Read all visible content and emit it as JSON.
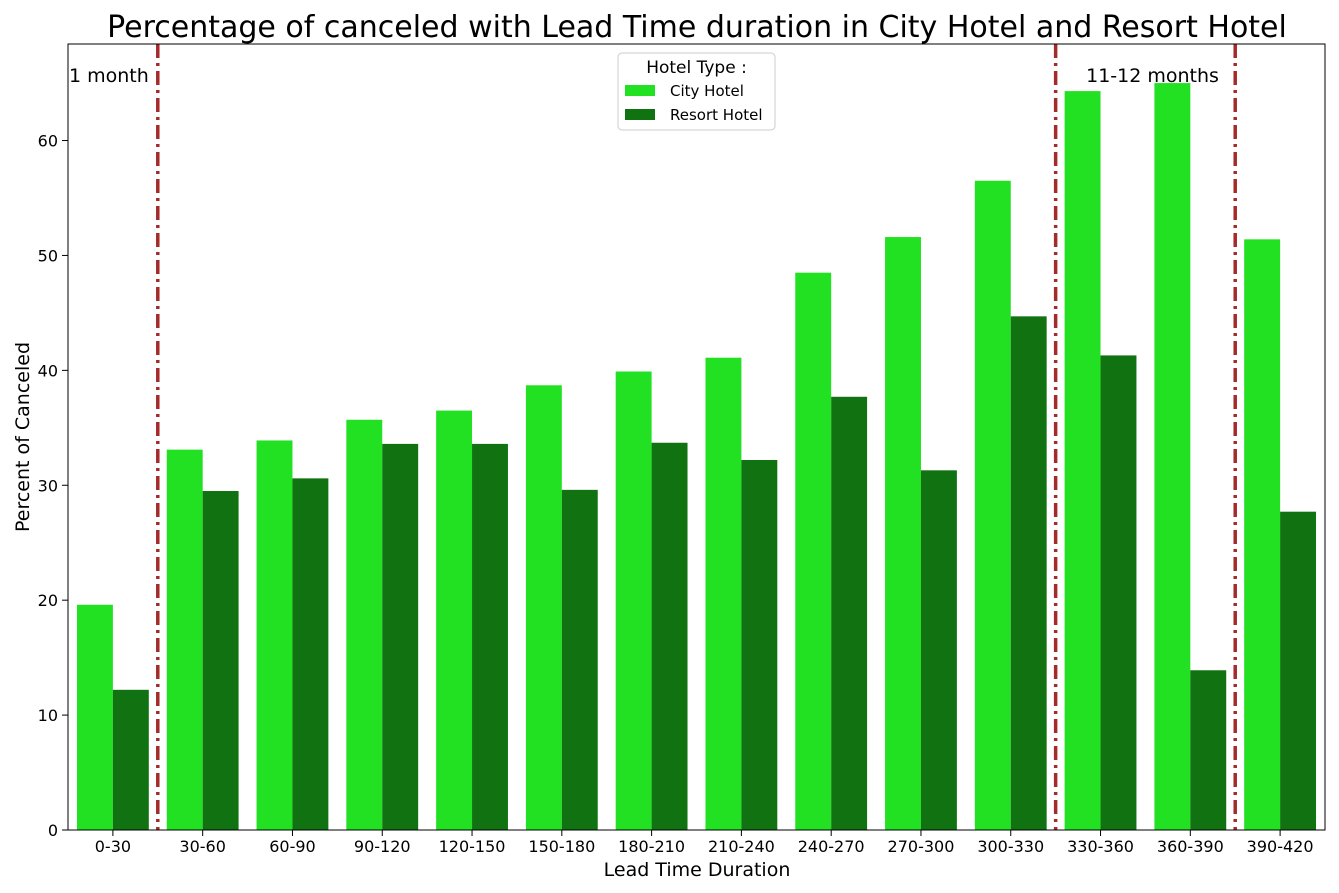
{
  "chart_data": {
    "type": "bar",
    "title": "Percentage of canceled with Lead Time duration in City Hotel and Resort Hotel",
    "xlabel": "Lead Time Duration",
    "ylabel": "Percent of Canceled",
    "ylim": [
      0,
      68.4
    ],
    "yticks": [
      0,
      10,
      20,
      30,
      40,
      50,
      60
    ],
    "categories": [
      "0-30",
      "30-60",
      "60-90",
      "90-120",
      "120-150",
      "150-180",
      "180-210",
      "210-240",
      "240-270",
      "270-300",
      "300-330",
      "330-360",
      "360-390",
      "390-420"
    ],
    "series": [
      {
        "name": "City Hotel",
        "color": "#22e022",
        "values": [
          19.6,
          33.1,
          33.9,
          35.7,
          36.5,
          38.7,
          39.9,
          41.1,
          48.5,
          51.6,
          56.5,
          64.3,
          65.0,
          51.4
        ]
      },
      {
        "name": "Resort Hotel",
        "color": "#117211",
        "values": [
          12.2,
          29.5,
          30.6,
          33.6,
          33.6,
          29.6,
          33.7,
          32.2,
          37.7,
          31.3,
          44.7,
          41.3,
          13.9,
          27.7
        ]
      }
    ],
    "legend": {
      "title": "Hotel Type :",
      "placement": "top-center"
    },
    "grid": false,
    "vlines": [
      {
        "between": [
          "0-30",
          "30-60"
        ],
        "color": "#a52a2a"
      },
      {
        "between": [
          "300-330",
          "330-360"
        ],
        "color": "#a52a2a"
      },
      {
        "between": [
          "360-390",
          "390-420"
        ],
        "color": "#a52a2a"
      }
    ],
    "annotations": [
      {
        "text": "1 month",
        "near": "0-30"
      },
      {
        "text": "11-12 months",
        "near": "330-360"
      }
    ]
  }
}
